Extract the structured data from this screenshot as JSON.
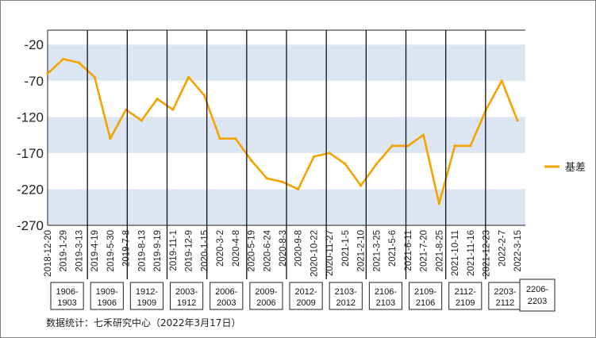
{
  "chart_data": {
    "type": "line",
    "title": "",
    "xlabel": "",
    "ylabel": "",
    "ylim": [
      -270,
      0
    ],
    "y_ticks": [
      -20,
      -70,
      -120,
      -170,
      -220,
      -270
    ],
    "x_tick_labels": [
      "2018-12-20",
      "2019-1-29",
      "2019-3-13",
      "2019-4-19",
      "2019-5-30",
      "2019-7-8",
      "2019-8-13",
      "2019-9-19",
      "2019-11-1",
      "2019-12-9",
      "2020-1-15",
      "2020-3-2",
      "2020-4-8",
      "2020-5-19",
      "2020-6-24",
      "2020-8-3",
      "2020-9-8",
      "2020-10-22",
      "2020-11-27",
      "2021-1-5",
      "2021-2-10",
      "2021-3-25",
      "2021-5-6",
      "2021-6-11",
      "2021-7-20",
      "2021-8-25",
      "2021-10-11",
      "2021-11-16",
      "2021-12-23",
      "2022-2-7",
      "2022-3-15"
    ],
    "contract_labels": [
      "1906-1903",
      "1909-1906",
      "1912-1909",
      "2003-1912",
      "2006-2003",
      "2009-2006",
      "2012-2009",
      "2103-2012",
      "2106-2103",
      "2109-2106",
      "2112-2109",
      "2203-2112",
      "2206-2203"
    ],
    "legend": [
      "基差"
    ],
    "legend_position": "right",
    "series": [
      {
        "name": "基差",
        "color": "#f5a300",
        "x": [
          "2018-12-20",
          "2019-1-29",
          "2019-3-13",
          "2019-4-19",
          "2019-5-30",
          "2019-7-8",
          "2019-8-13",
          "2019-9-19",
          "2019-11-1",
          "2019-12-9",
          "2020-1-15",
          "2020-3-2",
          "2020-4-8",
          "2020-5-19",
          "2020-6-24",
          "2020-8-3",
          "2020-9-8",
          "2020-10-22",
          "2020-11-27",
          "2021-1-5",
          "2021-2-10",
          "2021-3-25",
          "2021-5-6",
          "2021-6-11",
          "2021-7-20",
          "2021-8-25",
          "2021-10-11",
          "2021-11-16",
          "2021-12-23",
          "2022-2-7",
          "2022-3-15"
        ],
        "values": [
          -60,
          -40,
          -45,
          -65,
          -150,
          -110,
          -125,
          -95,
          -110,
          -65,
          -90,
          -150,
          -150,
          -180,
          -205,
          -210,
          -220,
          -175,
          -170,
          -185,
          -215,
          -185,
          -160,
          -160,
          -145,
          -240,
          -160,
          -160,
          -110,
          -70,
          -125
        ]
      }
    ]
  },
  "legend_label": "基差",
  "source_note": "数据统计：七禾研究中心（2022年3月17日）"
}
